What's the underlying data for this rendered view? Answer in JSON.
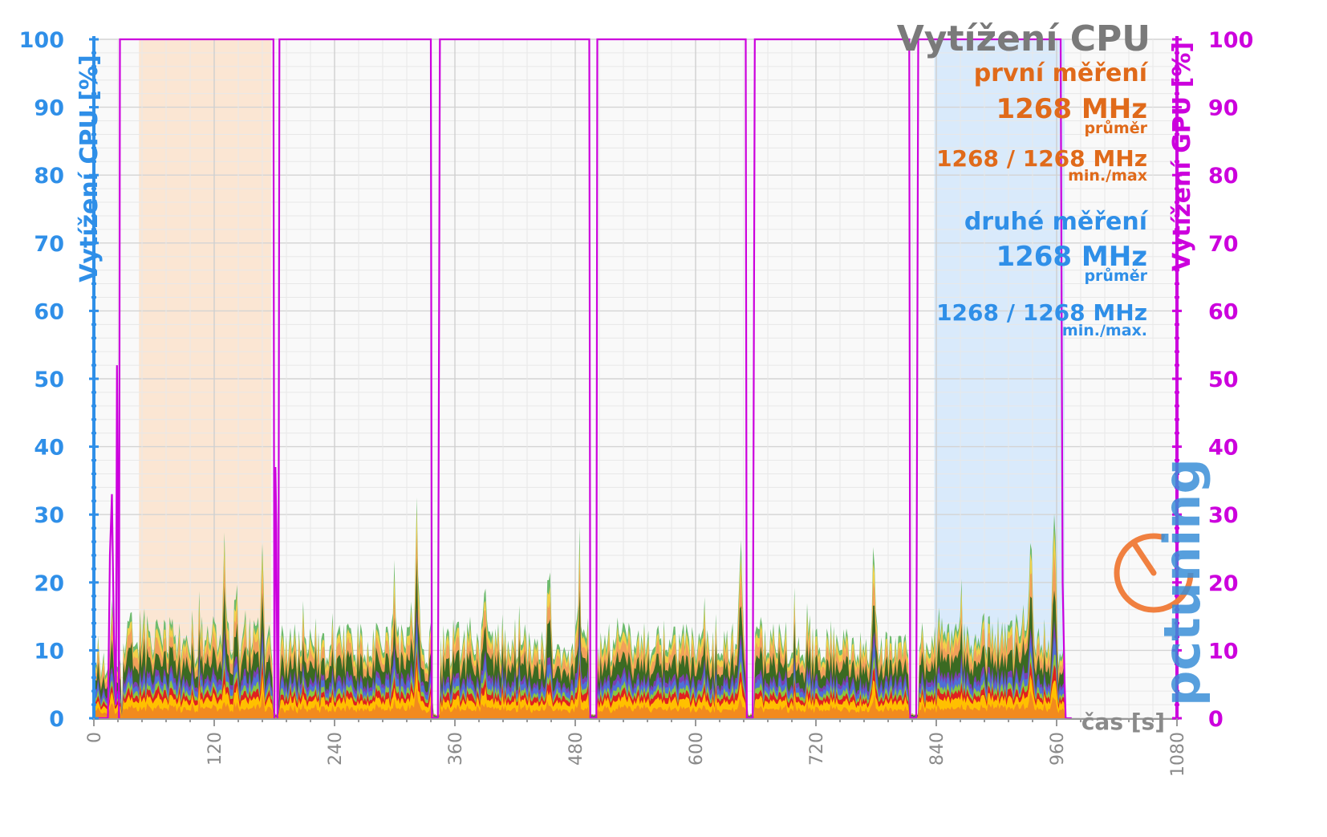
{
  "chart_data": {
    "type": "area",
    "title": "Vytížení CPU",
    "xlabel": "čas [s]",
    "ylabel_left": "Vytížení CPU [%]",
    "ylabel_right": "Vytížení GPU [%]",
    "xlim": [
      0,
      1080
    ],
    "ylim_left": [
      0,
      100
    ],
    "ylim_right": [
      0,
      100
    ],
    "x_ticks": [
      "0",
      "120",
      "240",
      "360",
      "480",
      "600",
      "720",
      "840",
      "960",
      "1080"
    ],
    "y_ticks_left": [
      "0",
      "10",
      "20",
      "30",
      "40",
      "50",
      "60",
      "70",
      "80",
      "90",
      "100"
    ],
    "y_ticks_right": [
      "0",
      "10",
      "20",
      "30",
      "40",
      "50",
      "60",
      "70",
      "80",
      "90",
      "100"
    ],
    "grid": true,
    "highlight_regions": [
      {
        "name": "první měření",
        "x": [
          45,
          177
        ],
        "color": "#fbe3cc"
      },
      {
        "name": "druhé měření",
        "x": [
          838,
          968
        ],
        "color": "#d4e8fb"
      }
    ],
    "series_colors": [
      "#f28a1e",
      "#ffc000",
      "#e02020",
      "#8cc63e",
      "#4f6fd8",
      "#7a3fb0",
      "#3a6a22",
      "#f1a05a",
      "#f2d04a",
      "#6dbb6d"
    ],
    "cpu_segments": [
      {
        "x": [
          0,
          27
        ],
        "level": 7
      },
      {
        "x": [
          28,
          178
        ],
        "level": 12
      },
      {
        "x": [
          185,
          336
        ],
        "level": 11
      },
      {
        "x": [
          345,
          494
        ],
        "level": 11
      },
      {
        "x": [
          502,
          650
        ],
        "level": 11
      },
      {
        "x": [
          659,
          812
        ],
        "level": 11
      },
      {
        "x": [
          822,
          968
        ],
        "level": 12
      }
    ],
    "cpu_peaks": [
      {
        "x": 4,
        "y": 15
      },
      {
        "x": 10,
        "y": 13
      },
      {
        "x": 18,
        "y": 24
      },
      {
        "x": 130,
        "y": 25
      },
      {
        "x": 142,
        "y": 22
      },
      {
        "x": 168,
        "y": 22
      },
      {
        "x": 300,
        "y": 23
      },
      {
        "x": 322,
        "y": 28
      },
      {
        "x": 390,
        "y": 25
      },
      {
        "x": 454,
        "y": 25
      },
      {
        "x": 484,
        "y": 24
      },
      {
        "x": 645,
        "y": 30
      },
      {
        "x": 778,
        "y": 24
      },
      {
        "x": 934,
        "y": 26
      },
      {
        "x": 958,
        "y": 32
      }
    ],
    "gpu_util": {
      "name": "GPU",
      "color": "#cc00dd",
      "x": [
        0,
        14,
        16,
        18,
        20,
        22,
        23,
        24,
        25,
        26,
        27,
        28,
        179,
        180,
        181,
        182,
        183,
        184,
        185,
        336,
        337,
        339,
        341,
        343,
        345,
        494,
        495,
        497,
        499,
        501,
        502,
        650,
        651,
        653,
        655,
        657,
        659,
        813,
        814,
        816,
        818,
        820,
        822,
        964,
        966,
        968,
        969,
        975
      ],
      "y": [
        0,
        0,
        24,
        33,
        12,
        2,
        52,
        30,
        0,
        100,
        100,
        100,
        100,
        0,
        37,
        28,
        0,
        5,
        100,
        100,
        0,
        0,
        0,
        0,
        100,
        100,
        0,
        0,
        0,
        0,
        100,
        100,
        0,
        0,
        0,
        0,
        100,
        100,
        0,
        0,
        0,
        0,
        100,
        100,
        20,
        5,
        0,
        0
      ]
    },
    "info_panel": {
      "first": {
        "heading": "první měření",
        "avg_value": "1268 MHz",
        "avg_label": "průměr",
        "minmax_value": "1268 / 1268 MHz",
        "minmax_label": "min./max"
      },
      "second": {
        "heading": "druhé měření",
        "avg_value": "1268 MHz",
        "avg_label": "průměr",
        "minmax_value": "1268 / 1268 MHz",
        "minmax_label": "min./max."
      }
    }
  },
  "logo": {
    "text": "pctuning",
    "color_pc": "#f08040",
    "color_tuning": "#3a8fd8"
  }
}
